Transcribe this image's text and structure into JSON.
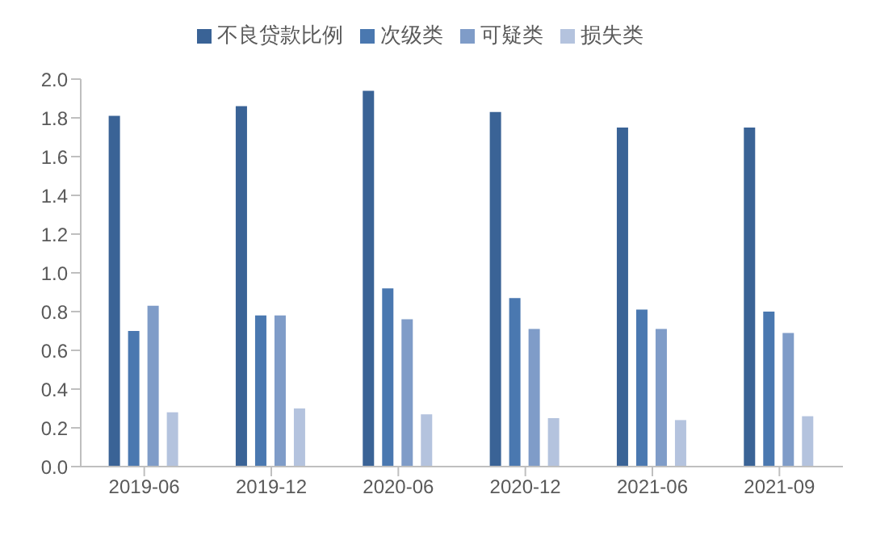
{
  "chart_data": {
    "type": "bar",
    "categories": [
      "2019-06",
      "2019-12",
      "2020-06",
      "2020-12",
      "2021-06",
      "2021-09"
    ],
    "series": [
      {
        "name": "不良贷款比例",
        "color": "#3a6396",
        "values": [
          1.81,
          1.86,
          1.94,
          1.83,
          1.75,
          1.75
        ]
      },
      {
        "name": "次级类",
        "color": "#4a78b0",
        "values": [
          0.7,
          0.78,
          0.92,
          0.87,
          0.81,
          0.8
        ]
      },
      {
        "name": "可疑类",
        "color": "#7f9cc8",
        "values": [
          0.83,
          0.78,
          0.76,
          0.71,
          0.71,
          0.69
        ]
      },
      {
        "name": "损失类",
        "color": "#b4c3de",
        "values": [
          0.28,
          0.3,
          0.27,
          0.25,
          0.24,
          0.26
        ]
      }
    ],
    "ylim": [
      0,
      2
    ],
    "yticks": [
      {
        "value": 0,
        "label": "0.0"
      },
      {
        "value": 0.2,
        "label": "0.2"
      },
      {
        "value": 0.4,
        "label": "0.4"
      },
      {
        "value": 0.6,
        "label": "0.6"
      },
      {
        "value": 0.8,
        "label": "0.8"
      },
      {
        "value": 1,
        "label": "1.0"
      },
      {
        "value": 1.2,
        "label": "1.2"
      },
      {
        "value": 1.4,
        "label": "1.4"
      },
      {
        "value": 1.6,
        "label": "1.6"
      },
      {
        "value": 1.8,
        "label": "1.8"
      },
      {
        "value": 2,
        "label": "2.0"
      }
    ],
    "grid": false,
    "legend": "top"
  }
}
